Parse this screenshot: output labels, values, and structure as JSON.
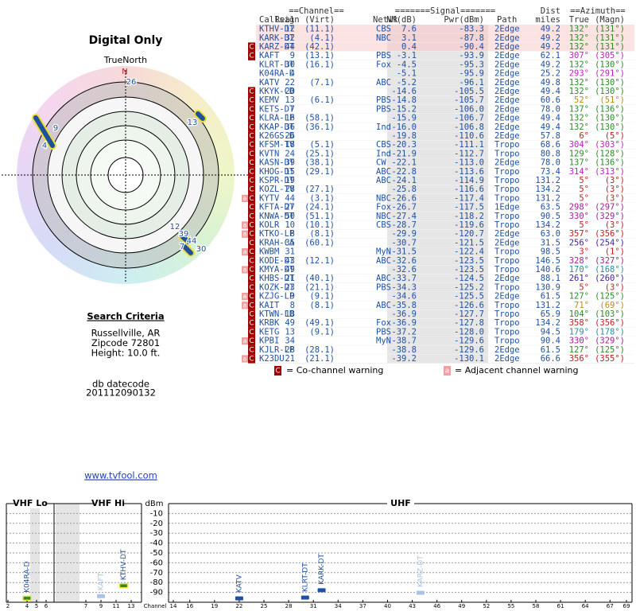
{
  "left": {
    "title": "Digital Only",
    "north_label": "TrueNorth",
    "north": "N",
    "polar_labels": [
      "26",
      "9",
      "4",
      "13",
      "12",
      "39",
      "44",
      "7",
      "30"
    ],
    "search_title": "Search Criteria",
    "search_lines": [
      "Russellville, AR",
      "Zipcode 72801",
      "Height: 10.0 ft."
    ],
    "datecode_title": "db datecode",
    "datecode": "201112090132",
    "link": "www.tvfool.com"
  },
  "table": {
    "group_headers": [
      "==Channel==",
      "=======Signal=======",
      "Dist",
      "==Azimuth=="
    ],
    "headers": [
      "Callsign",
      "Real",
      "(Virt)",
      "Netwk",
      "NM(dB)",
      "Pwr(dBm)",
      "Path",
      "miles",
      "True",
      "(Magn)"
    ],
    "rows": [
      {
        "call": "KTHV-DT",
        "real": "12",
        "virt": "(11.1)",
        "net": "CBS",
        "nm": "7.6",
        "pwr": "-83.3",
        "path": "2Edge",
        "dist": "49.2",
        "az": "132°",
        "magn": "(131°)",
        "color": "#2a8a2a",
        "bg": "#fde2e2"
      },
      {
        "call": "KARK-DT",
        "real": "32",
        "virt": "(4.1)",
        "net": "NBC",
        "nm": "3.1",
        "pwr": "-87.8",
        "path": "2Edge",
        "dist": "49.2",
        "az": "132°",
        "magn": "(131°)",
        "color": "#2a8a2a",
        "bg": "#fde2e2"
      },
      {
        "call": "KARZ-DT",
        "real": "44",
        "virt": "(42.1)",
        "nm": "0.4",
        "pwr": "-90.4",
        "path": "2Edge",
        "dist": "49.2",
        "az": "132°",
        "magn": "(131°)",
        "color": "#2a8a2a",
        "bg": "#fde2e2",
        "co": "C"
      },
      {
        "call": "KAFT",
        "real": "9",
        "virt": "(13.1)",
        "net": "PBS",
        "nm": "-3.1",
        "pwr": "-93.9",
        "path": "2Edge",
        "dist": "62.1",
        "az": "307°",
        "magn": "(305°)",
        "color": "#c020c0",
        "co": "C"
      },
      {
        "call": "KLRT-DT",
        "real": "30",
        "virt": "(16.1)",
        "net": "Fox",
        "nm": "-4.5",
        "pwr": "-95.3",
        "path": "2Edge",
        "dist": "49.2",
        "az": "132°",
        "magn": "(130°)",
        "color": "#2a8a2a"
      },
      {
        "call": "K04RA-D",
        "real": "4",
        "nm": "-5.1",
        "pwr": "-95.9",
        "path": "2Edge",
        "dist": "25.2",
        "az": "293°",
        "magn": "(291°)",
        "color": "#c020c0"
      },
      {
        "call": "KATV",
        "real": "22",
        "virt": "(7.1)",
        "net": "ABC",
        "nm": "-5.2",
        "pwr": "-96.1",
        "path": "2Edge",
        "dist": "49.8",
        "az": "132°",
        "magn": "(130°)",
        "color": "#2a8a2a"
      },
      {
        "call": "KKYK-CD",
        "real": "20",
        "nm": "-14.6",
        "pwr": "-105.5",
        "path": "2Edge",
        "dist": "49.4",
        "az": "132°",
        "magn": "(130°)",
        "color": "#2a8a2a",
        "co": "C"
      },
      {
        "call": "KEMV",
        "real": "13",
        "virt": "(6.1)",
        "net": "PBS",
        "nm": "-14.8",
        "pwr": "-105.7",
        "path": "2Edge",
        "dist": "60.6",
        "az": "52°",
        "magn": "(51°)",
        "color": "#b8900a",
        "co": "C"
      },
      {
        "call": "KETS-DT",
        "real": "7",
        "net": "PBS",
        "nm": "-15.2",
        "pwr": "-106.0",
        "path": "2Edge",
        "dist": "78.0",
        "az": "137°",
        "magn": "(136°)",
        "color": "#2a8a2a",
        "co": "C"
      },
      {
        "call": "KLRA-LP",
        "real": "16",
        "virt": "(58.1)",
        "nm": "-15.9",
        "pwr": "-106.7",
        "path": "2Edge",
        "dist": "49.4",
        "az": "132°",
        "magn": "(130°)",
        "color": "#2a8a2a",
        "co": "C"
      },
      {
        "call": "KKAP-DT",
        "real": "36",
        "virt": "(36.1)",
        "net": "Ind",
        "nm": "-16.0",
        "pwr": "-106.8",
        "path": "2Edge",
        "dist": "49.4",
        "az": "132°",
        "magn": "(130°)",
        "color": "#2a8a2a",
        "co": "C"
      },
      {
        "call": "K26GS-D",
        "real": "26",
        "nm": "-19.8",
        "pwr": "-110.6",
        "path": "2Edge",
        "dist": "57.8",
        "az": "6°",
        "magn": "(5°)",
        "color": "#c02020",
        "co": "C"
      },
      {
        "call": "KFSM-TV",
        "real": "18",
        "virt": "(5.1)",
        "net": "CBS",
        "nm": "-20.3",
        "pwr": "-111.1",
        "path": "Tropo",
        "dist": "68.6",
        "az": "304°",
        "magn": "(303°)",
        "color": "#c020c0",
        "co": "C"
      },
      {
        "call": "KVTN",
        "real": "24",
        "virt": "(25.1)",
        "net": "Ind",
        "nm": "-21.9",
        "pwr": "-112.7",
        "path": "Tropo",
        "dist": "80.8",
        "az": "129°",
        "magn": "(128°)",
        "color": "#2a8a2a",
        "co": "C"
      },
      {
        "call": "KASN-DT",
        "real": "39",
        "virt": "(38.1)",
        "net": "CW",
        "nm": "-22.1",
        "pwr": "-113.0",
        "path": "2Edge",
        "dist": "78.0",
        "az": "137°",
        "magn": "(136°)",
        "color": "#2a8a2a",
        "co": "C"
      },
      {
        "call": "KHOG-DT",
        "real": "15",
        "virt": "(29.1)",
        "net": "ABC",
        "nm": "-22.8",
        "pwr": "-113.6",
        "path": "Tropo",
        "dist": "73.4",
        "az": "314°",
        "magn": "(313°)",
        "color": "#c020c0",
        "co": "C"
      },
      {
        "call": "KSPR-DT",
        "real": "19",
        "net": "ABC",
        "nm": "-24.1",
        "pwr": "-114.9",
        "path": "Tropo",
        "dist": "131.2",
        "az": "5°",
        "magn": "(3°)",
        "color": "#c02020",
        "co": "C"
      },
      {
        "call": "KOZL-TV",
        "real": "28",
        "virt": "(27.1)",
        "nm": "-25.8",
        "pwr": "-116.6",
        "path": "Tropo",
        "dist": "134.2",
        "az": "5°",
        "magn": "(3°)",
        "color": "#c02020",
        "co": "C"
      },
      {
        "call": "KYTV",
        "real": "44",
        "virt": "(3.1)",
        "net": "NBC",
        "nm": "-26.6",
        "pwr": "-117.4",
        "path": "Tropo",
        "dist": "131.2",
        "az": "5°",
        "magn": "(3°)",
        "color": "#c02020",
        "co": "C",
        "adj": "a"
      },
      {
        "call": "KFTA-DT",
        "real": "27",
        "virt": "(24.1)",
        "net": "Fox",
        "nm": "-26.7",
        "pwr": "-117.5",
        "path": "1Edge",
        "dist": "63.5",
        "az": "298°",
        "magn": "(297°)",
        "color": "#a02090",
        "co": "C"
      },
      {
        "call": "KNWA-DT",
        "real": "50",
        "virt": "(51.1)",
        "net": "NBC",
        "nm": "-27.4",
        "pwr": "-118.2",
        "path": "Tropo",
        "dist": "90.5",
        "az": "330°",
        "magn": "(329°)",
        "color": "#a02090",
        "co": "C"
      },
      {
        "call": "KOLR",
        "real": "10",
        "virt": "(10.1)",
        "net": "CBS",
        "nm": "-28.7",
        "pwr": "-119.6",
        "path": "Tropo",
        "dist": "134.2",
        "az": "5°",
        "magn": "(3°)",
        "color": "#c02020",
        "co": "C",
        "adj": "a"
      },
      {
        "call": "KTKO-LP",
        "real": "8",
        "virt": "(8.1)",
        "nm": "-29.9",
        "pwr": "-120.7",
        "path": "2Edge",
        "dist": "63.0",
        "az": "357°",
        "magn": "(356°)",
        "color": "#c02020",
        "co": "C",
        "adj": "a"
      },
      {
        "call": "KRAH-CA",
        "real": "35",
        "virt": "(60.1)",
        "nm": "-30.7",
        "pwr": "-121.5",
        "path": "2Edge",
        "dist": "31.5",
        "az": "256°",
        "magn": "(254°)",
        "color": "#4020a0",
        "co": "C"
      },
      {
        "call": "KWBM",
        "real": "31",
        "net": "MyN",
        "nm": "-31.5",
        "pwr": "-122.4",
        "path": "Tropo",
        "dist": "98.5",
        "az": "3°",
        "magn": "(1°)",
        "color": "#c02020",
        "co": "C",
        "adj": "a"
      },
      {
        "call": "KODE-DT",
        "real": "43",
        "virt": "(12.1)",
        "net": "ABC",
        "nm": "-32.6",
        "pwr": "-123.5",
        "path": "Tropo",
        "dist": "146.5",
        "az": "328°",
        "magn": "(327°)",
        "color": "#a02090",
        "co": "C"
      },
      {
        "call": "KMYA-DT",
        "real": "49",
        "nm": "-32.6",
        "pwr": "-123.5",
        "path": "Tropo",
        "dist": "140.6",
        "az": "170°",
        "magn": "(168°)",
        "color": "#20909a",
        "co": "C",
        "adj": "a"
      },
      {
        "call": "KHBS-DT",
        "real": "21",
        "virt": "(40.1)",
        "net": "ABC",
        "nm": "-33.7",
        "pwr": "-124.5",
        "path": "2Edge",
        "dist": "88.1",
        "az": "261°",
        "magn": "(260°)",
        "color": "#4020a0",
        "co": "C"
      },
      {
        "call": "KOZK-DT",
        "real": "23",
        "virt": "(21.1)",
        "net": "PBS",
        "nm": "-34.3",
        "pwr": "-125.2",
        "path": "Tropo",
        "dist": "130.9",
        "az": "5°",
        "magn": "(3°)",
        "color": "#c02020",
        "co": "C"
      },
      {
        "call": "KZJG-LP",
        "real": "9",
        "virt": "(9.1)",
        "nm": "-34.6",
        "pwr": "-125.5",
        "path": "2Edge",
        "dist": "61.5",
        "az": "127°",
        "magn": "(125°)",
        "color": "#2a8a2a",
        "co": "C",
        "adj": "a"
      },
      {
        "call": "KAIT",
        "real": "8",
        "virt": "(8.1)",
        "net": "ABC",
        "nm": "-35.8",
        "pwr": "-126.6",
        "path": "Tropo",
        "dist": "131.2",
        "az": "71°",
        "magn": "(69°)",
        "color": "#b8900a",
        "co": "C",
        "adj": "a"
      },
      {
        "call": "KTWN-LD",
        "real": "18",
        "nm": "-36.9",
        "pwr": "-127.7",
        "path": "Tropo",
        "dist": "65.9",
        "az": "104°",
        "magn": "(103°)",
        "color": "#2a8a2a",
        "co": "C"
      },
      {
        "call": "KRBK",
        "real": "49",
        "virt": "(49.1)",
        "net": "Fox",
        "nm": "-36.9",
        "pwr": "-127.8",
        "path": "Tropo",
        "dist": "134.2",
        "az": "358°",
        "magn": "(356°)",
        "color": "#c02020",
        "co": "C"
      },
      {
        "call": "KETG",
        "real": "13",
        "virt": "(9.1)",
        "net": "PBS",
        "nm": "-37.2",
        "pwr": "-128.0",
        "path": "Tropo",
        "dist": "94.5",
        "az": "179°",
        "magn": "(178°)",
        "color": "#20909a",
        "co": "C"
      },
      {
        "call": "KPBI",
        "real": "34",
        "net": "MyN",
        "nm": "-38.7",
        "pwr": "-129.6",
        "path": "Tropo",
        "dist": "90.4",
        "az": "330°",
        "magn": "(329°)",
        "color": "#a02090",
        "co": "C",
        "adj": "a"
      },
      {
        "call": "KJLR-LP",
        "real": "28",
        "virt": "(28.1)",
        "nm": "-38.8",
        "pwr": "-129.6",
        "path": "2Edge",
        "dist": "61.5",
        "az": "127°",
        "magn": "(125°)",
        "color": "#2a8a2a",
        "co": "C"
      },
      {
        "call": "K23DU",
        "real": "21",
        "virt": "(21.1)",
        "nm": "-39.2",
        "pwr": "-130.1",
        "path": "2Edge",
        "dist": "66.6",
        "az": "356°",
        "magn": "(355°)",
        "color": "#c02020",
        "co": "C",
        "adj": "a"
      }
    ]
  },
  "legend": {
    "co_mark": "C",
    "co": "= Co-channel warning",
    "adj_mark": "a",
    "adj": "= Adjacent channel warning"
  },
  "chart_data": {
    "type": "spectrum",
    "bands": [
      "VHF Lo",
      "VHF Hi",
      "UHF"
    ],
    "y_label": "dBm",
    "x_label": "Channel",
    "ylim": [
      -100,
      0
    ],
    "yticks": [
      -10,
      -20,
      -30,
      -40,
      -50,
      -60,
      -70,
      -80,
      -90
    ],
    "grid": true,
    "xticks": [
      2,
      4,
      5,
      6,
      7,
      9,
      11,
      13,
      14,
      16,
      19,
      22,
      25,
      28,
      31,
      34,
      37,
      40,
      43,
      46,
      49,
      52,
      55,
      58,
      61,
      64,
      67,
      69
    ],
    "stations": [
      {
        "name": "K04RA-D",
        "x": 4,
        "value": -95.9,
        "color": "#2a8a2a",
        "outline": "#e8e030",
        "text_color": "#1f4fa0"
      },
      {
        "name": "KAFT",
        "x": 9,
        "value": -93.9,
        "color": "#a8c4e6",
        "text_color": "#a8c4e6"
      },
      {
        "name": "KTHV-DT",
        "x": 12,
        "value": -83.3,
        "color": "#2a8a2a",
        "outline": "#e8e030",
        "text_color": "#1f4fa0"
      },
      {
        "name": "KATV",
        "x": 22,
        "value": -96.1,
        "color": "#1f4fa0",
        "text_color": "#1f4fa0"
      },
      {
        "name": "KLRT-DT",
        "x": 30,
        "value": -95.3,
        "color": "#1f4fa0",
        "text_color": "#1f4fa0"
      },
      {
        "name": "KARK-DT",
        "x": 32,
        "value": -87.8,
        "color": "#1f4fa0",
        "text_color": "#1f4fa0"
      },
      {
        "name": "KARZ-DT",
        "x": 44,
        "value": -90.4,
        "color": "#a8c4e6",
        "text_color": "#a8c4e6"
      }
    ]
  }
}
